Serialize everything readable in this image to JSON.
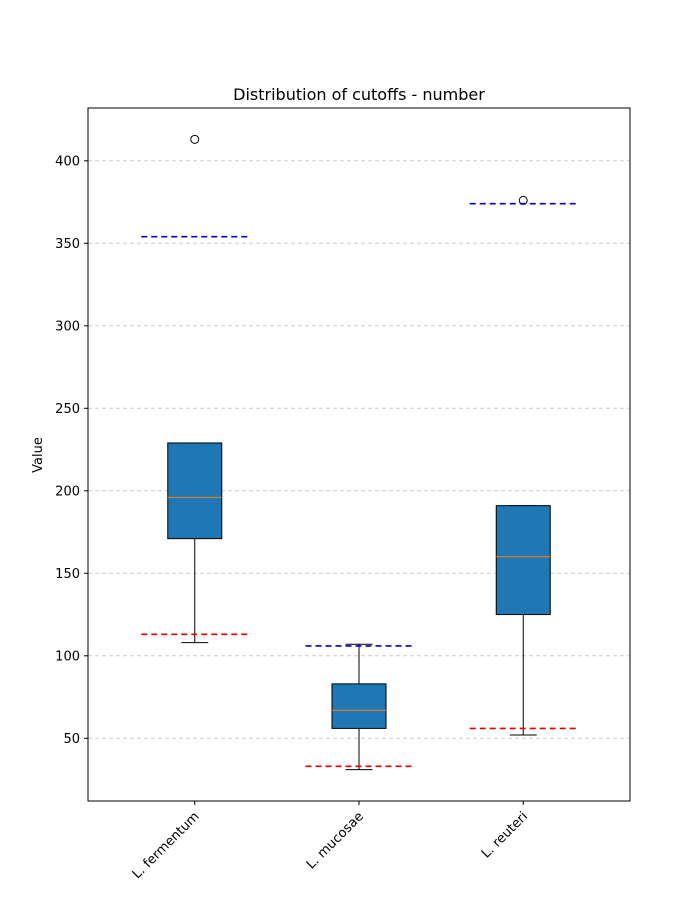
{
  "chart_data": {
    "type": "box",
    "title": "Distribution of cutoffs - number",
    "xlabel": "",
    "ylabel": "Value",
    "ylim": [
      12,
      432
    ],
    "yticks": [
      50,
      100,
      150,
      200,
      250,
      300,
      350,
      400
    ],
    "grid": "y-dashed",
    "categories": [
      "L. fermentum",
      "L. mucosae",
      "L. reuteri"
    ],
    "boxes": [
      {
        "whisker_low": 108,
        "q1": 171,
        "median": 196,
        "q3": 229,
        "whisker_high": 229,
        "outliers": [
          413
        ]
      },
      {
        "whisker_low": 31,
        "q1": 56,
        "median": 67,
        "q3": 83,
        "whisker_high": 107,
        "outliers": []
      },
      {
        "whisker_low": 52,
        "q1": 125,
        "median": 160,
        "q3": 191,
        "whisker_high": 191,
        "outliers": [
          376
        ]
      }
    ],
    "upper_cutoffs": [
      354,
      106,
      374
    ],
    "lower_cutoffs": [
      113,
      33,
      56
    ],
    "colors": {
      "box_fill": "#1f77b4",
      "median": "#ff7f0e",
      "upper_cutoff": "#0000cc",
      "lower_cutoff": "#e00000",
      "grid": "#cccccc"
    }
  }
}
